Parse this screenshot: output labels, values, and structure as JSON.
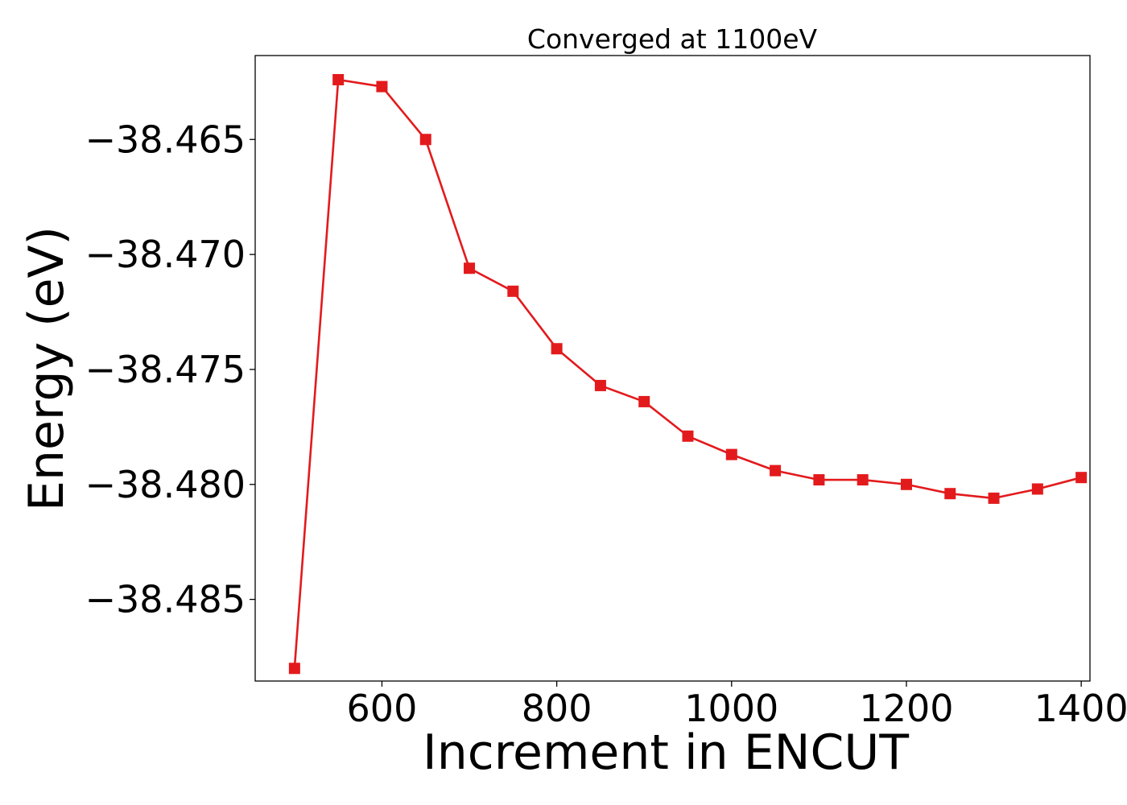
{
  "chart_data": {
    "type": "line",
    "title": "Converged at 1100eV",
    "xlabel": "Increment in ENCUT",
    "ylabel": "Energy (eV)",
    "xlim": [
      455,
      1410
    ],
    "ylim": [
      -38.48855,
      -38.46135
    ],
    "xticks": [
      600,
      800,
      1000,
      1200,
      1400
    ],
    "xtick_labels": [
      "600",
      "800",
      "1000",
      "1200",
      "1400"
    ],
    "yticks": [
      -38.465,
      -38.47,
      -38.475,
      -38.48,
      -38.485
    ],
    "ytick_labels": [
      "−38.465",
      "−38.470",
      "−38.475",
      "−38.480",
      "−38.485"
    ],
    "grid": false,
    "series": [
      {
        "color": "#e31a1c",
        "marker": "square",
        "x": [
          500,
          550,
          600,
          650,
          700,
          750,
          800,
          850,
          900,
          950,
          1000,
          1050,
          1100,
          1150,
          1200,
          1250,
          1300,
          1350,
          1400
        ],
        "y": [
          -38.488,
          -38.4624,
          -38.4627,
          -38.465,
          -38.4706,
          -38.4716,
          -38.4741,
          -38.4757,
          -38.4764,
          -38.4779,
          -38.4787,
          -38.4794,
          -38.4798,
          -38.4798,
          -38.48,
          -38.4804,
          -38.4806,
          -38.4802,
          -38.4797
        ]
      }
    ]
  }
}
